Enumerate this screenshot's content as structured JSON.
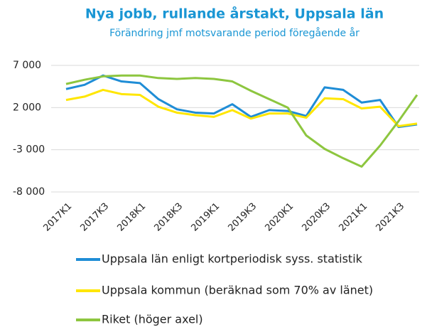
{
  "chart_data": {
    "type": "line",
    "title": "Nya jobb, rullande årstakt, Uppsala län",
    "subtitle": "Förändring jmf motsvarande period föregående år",
    "categories": [
      "2017K1",
      null,
      "2017K3",
      null,
      "2018K1",
      null,
      "2018K3",
      null,
      "2019K1",
      null,
      "2019K3",
      null,
      "2020K1",
      null,
      "2020K3",
      null,
      "2021K1",
      null,
      "2021K3",
      null
    ],
    "ylim": [
      -8000,
      7000
    ],
    "yticks": [
      {
        "value": 7000,
        "label": "7 000"
      },
      {
        "value": 2000,
        "label": "2 000"
      },
      {
        "value": -3000,
        "label": "-3 000"
      },
      {
        "value": -8000,
        "label": "-8 000"
      }
    ],
    "grid": true,
    "series": [
      {
        "name": "Uppsala län enligt kortperiodisk syss. statistik",
        "color": "#1f8dd6",
        "values": [
          4200,
          4700,
          5800,
          5100,
          4900,
          3000,
          1800,
          1400,
          1300,
          2400,
          900,
          1700,
          1600,
          1000,
          4400,
          4100,
          2600,
          2900,
          -300,
          0
        ]
      },
      {
        "name": "Uppsala kommun (beräknad som 70% av länet)",
        "color": "#ffe600",
        "values": [
          2900,
          3300,
          4100,
          3600,
          3500,
          2100,
          1400,
          1100,
          900,
          1700,
          700,
          1300,
          1300,
          800,
          3100,
          3000,
          1900,
          2100,
          -200,
          100
        ]
      },
      {
        "name": "Riket (höger axel)",
        "color": "#8dc63f",
        "values": [
          4800,
          5300,
          5700,
          5800,
          5800,
          5500,
          5400,
          5500,
          5400,
          5100,
          4000,
          3000,
          2000,
          -1300,
          -2900,
          -4000,
          -5000,
          -2500,
          400,
          3500
        ]
      }
    ]
  }
}
